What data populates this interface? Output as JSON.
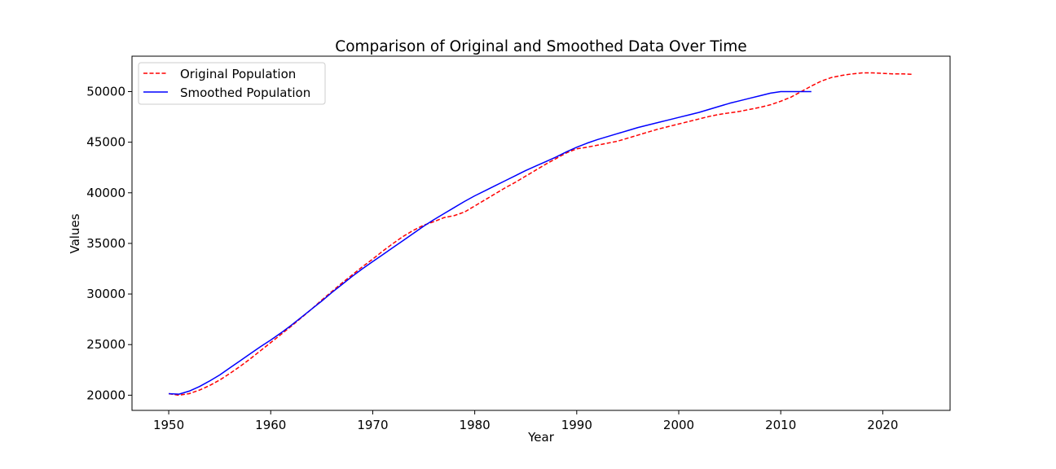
{
  "chart_data": {
    "type": "line",
    "title": "Comparison of Original and Smoothed Data Over Time",
    "xlabel": "Year",
    "ylabel": "Values",
    "xlim": [
      1946.4,
      2026.6
    ],
    "ylim": [
      18500,
      53500
    ],
    "xticks": [
      1950,
      1960,
      1970,
      1980,
      1990,
      2000,
      2010,
      2020
    ],
    "yticks": [
      20000,
      25000,
      30000,
      35000,
      40000,
      45000,
      50000
    ],
    "grid": false,
    "legend_position": "upper-left",
    "series": [
      {
        "name": "Original Population",
        "color": "#ff0000",
        "style": "dashed",
        "x": [
          1950,
          1951,
          1952,
          1953,
          1954,
          1955,
          1956,
          1957,
          1958,
          1959,
          1960,
          1961,
          1962,
          1963,
          1964,
          1965,
          1966,
          1967,
          1968,
          1969,
          1970,
          1971,
          1972,
          1973,
          1974,
          1975,
          1976,
          1977,
          1978,
          1979,
          1980,
          1981,
          1982,
          1983,
          1984,
          1985,
          1986,
          1987,
          1988,
          1989,
          1990,
          1991,
          1992,
          1993,
          1994,
          1995,
          1996,
          1997,
          1998,
          1999,
          2000,
          2001,
          2002,
          2003,
          2004,
          2005,
          2006,
          2007,
          2008,
          2009,
          2010,
          2011,
          2012,
          2013,
          2014,
          2015,
          2016,
          2017,
          2018,
          2019,
          2020,
          2021,
          2022,
          2023
        ],
        "values": [
          20150,
          20000,
          20150,
          20500,
          20950,
          21500,
          22150,
          22850,
          23600,
          24400,
          25200,
          26000,
          26800,
          27650,
          28500,
          29400,
          30250,
          31100,
          31900,
          32700,
          33450,
          34250,
          35000,
          35700,
          36300,
          36800,
          37150,
          37550,
          37750,
          38100,
          38700,
          39300,
          39900,
          40500,
          41050,
          41650,
          42250,
          42850,
          43400,
          43950,
          44350,
          44500,
          44700,
          44900,
          45100,
          45400,
          45700,
          46000,
          46300,
          46550,
          46800,
          47050,
          47300,
          47550,
          47750,
          47900,
          48050,
          48250,
          48450,
          48700,
          49050,
          49450,
          50000,
          50550,
          51050,
          51400,
          51600,
          51750,
          51850,
          51850,
          51800,
          51750,
          51750,
          51700
        ]
      },
      {
        "name": "Smoothed Population",
        "color": "#0000ff",
        "style": "solid",
        "x": [
          1950,
          1951,
          1952,
          1953,
          1954,
          1955,
          1956,
          1957,
          1958,
          1959,
          1960,
          1961,
          1962,
          1963,
          1964,
          1965,
          1966,
          1967,
          1968,
          1969,
          1970,
          1971,
          1972,
          1973,
          1974,
          1975,
          1976,
          1977,
          1978,
          1979,
          1980,
          1981,
          1982,
          1983,
          1984,
          1985,
          1986,
          1987,
          1988,
          1989,
          1990,
          1991,
          1992,
          1993,
          1994,
          1995,
          1996,
          1997,
          1998,
          1999,
          2000,
          2001,
          2002,
          2003,
          2004,
          2005,
          2006,
          2007,
          2008,
          2009,
          2010,
          2011,
          2012,
          2013
        ],
        "values": [
          20150,
          20100,
          20400,
          20850,
          21400,
          22000,
          22700,
          23400,
          24100,
          24800,
          25450,
          26150,
          26900,
          27700,
          28500,
          29300,
          30150,
          30950,
          31750,
          32500,
          33200,
          33900,
          34600,
          35300,
          36000,
          36700,
          37350,
          37950,
          38550,
          39150,
          39700,
          40200,
          40700,
          41200,
          41700,
          42200,
          42650,
          43100,
          43550,
          44050,
          44500,
          44900,
          45250,
          45550,
          45850,
          46150,
          46450,
          46700,
          46950,
          47200,
          47450,
          47700,
          47950,
          48250,
          48550,
          48850,
          49100,
          49350,
          49600,
          49850,
          50000,
          50000,
          50000,
          50000
        ]
      }
    ]
  }
}
